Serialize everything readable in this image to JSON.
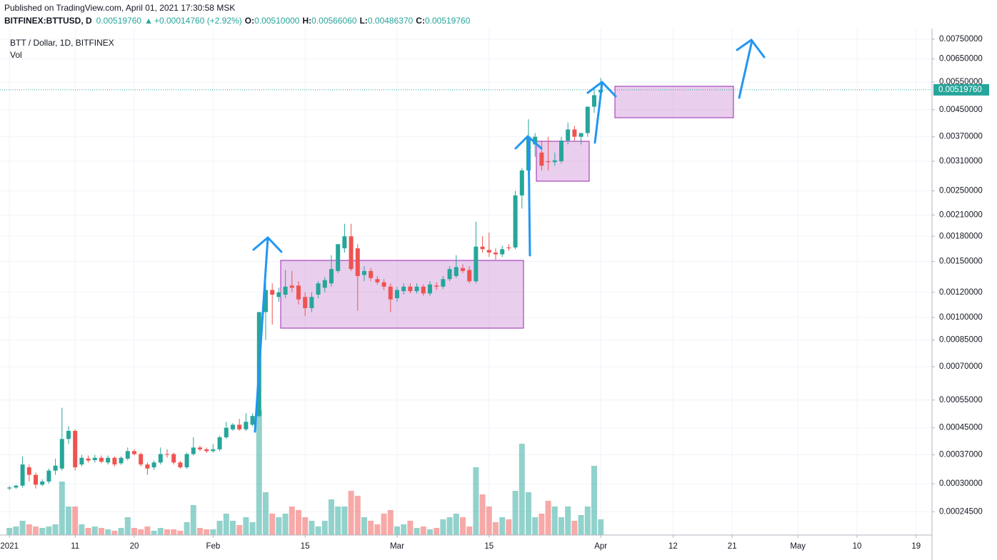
{
  "header": {
    "published": "Published on TradingView.com, April 01, 2021 17:30:58 MSK",
    "symbol": "BITFINEX:BTTUSD, D",
    "last": "0.00519760",
    "arrow": "▲",
    "change": "+0.00014760 (+2.92%)",
    "ohlc": [
      {
        "key": "O:",
        "value": "0.00510000"
      },
      {
        "key": "H:",
        "value": "0.00566060"
      },
      {
        "key": "L:",
        "value": "0.00486370"
      },
      {
        "key": "C:",
        "value": "0.00519760"
      }
    ]
  },
  "legend": {
    "title": "BTT / Dollar, 1D, BITFINEX",
    "volume": "Vol"
  },
  "chart_data": {
    "type": "candlestick",
    "log_scale": true,
    "grid": true,
    "up_color": "#26a69a",
    "down_color": "#ef5350",
    "x": [
      "2021-01-01",
      "2021-01-02",
      "2021-01-03",
      "2021-01-04",
      "2021-01-05",
      "2021-01-06",
      "2021-01-07",
      "2021-01-08",
      "2021-01-09",
      "2021-01-10",
      "2021-01-11",
      "2021-01-12",
      "2021-01-13",
      "2021-01-14",
      "2021-01-15",
      "2021-01-16",
      "2021-01-17",
      "2021-01-18",
      "2021-01-19",
      "2021-01-20",
      "2021-01-21",
      "2021-01-22",
      "2021-01-23",
      "2021-01-24",
      "2021-01-25",
      "2021-01-26",
      "2021-01-27",
      "2021-01-28",
      "2021-01-29",
      "2021-01-30",
      "2021-01-31",
      "2021-02-01",
      "2021-02-02",
      "2021-02-03",
      "2021-02-04",
      "2021-02-05",
      "2021-02-06",
      "2021-02-07",
      "2021-02-08",
      "2021-02-09",
      "2021-02-10",
      "2021-02-11",
      "2021-02-12",
      "2021-02-13",
      "2021-02-14",
      "2021-02-15",
      "2021-02-16",
      "2021-02-17",
      "2021-02-18",
      "2021-02-19",
      "2021-02-20",
      "2021-02-21",
      "2021-02-22",
      "2021-02-23",
      "2021-02-24",
      "2021-02-25",
      "2021-02-26",
      "2021-02-27",
      "2021-02-28",
      "2021-03-01",
      "2021-03-02",
      "2021-03-03",
      "2021-03-04",
      "2021-03-05",
      "2021-03-06",
      "2021-03-07",
      "2021-03-08",
      "2021-03-09",
      "2021-03-10",
      "2021-03-11",
      "2021-03-12",
      "2021-03-13",
      "2021-03-14",
      "2021-03-15",
      "2021-03-16",
      "2021-03-17",
      "2021-03-18",
      "2021-03-19",
      "2021-03-20",
      "2021-03-21",
      "2021-03-22",
      "2021-03-23",
      "2021-03-24",
      "2021-03-25",
      "2021-03-26",
      "2021-03-27",
      "2021-03-28",
      "2021-03-29",
      "2021-03-30",
      "2021-03-31",
      "2021-04-01"
    ],
    "open": [
      0.00029,
      0.000292,
      0.000296,
      0.000338,
      0.00032,
      0.000298,
      0.000305,
      0.00033,
      0.000335,
      0.000415,
      0.00044,
      0.000345,
      0.00036,
      0.000356,
      0.000362,
      0.00035,
      0.000362,
      0.000348,
      0.00036,
      0.00038,
      0.000372,
      0.000345,
      0.000338,
      0.00035,
      0.000372,
      0.000372,
      0.00035,
      0.000338,
      0.000372,
      0.00039,
      0.000385,
      0.00038,
      0.000385,
      0.00042,
      0.000445,
      0.00046,
      0.000445,
      0.00046,
      0.00049,
      0.00104,
      0.00122,
      0.00116,
      0.00118,
      0.00126,
      0.00126,
      0.00116,
      0.00107,
      0.00118,
      0.00124,
      0.00128,
      0.0014,
      0.00165,
      0.0018,
      0.00165,
      0.00136,
      0.0014,
      0.00132,
      0.00129,
      0.00125,
      0.00115,
      0.00121,
      0.00125,
      0.00121,
      0.00125,
      0.00119,
      0.00126,
      0.00125,
      0.00132,
      0.00135,
      0.00143,
      0.00141,
      0.0013,
      0.00167,
      0.00163,
      0.0016,
      0.00158,
      0.00166,
      0.00166,
      0.00242,
      0.0029,
      0.0035,
      0.0033,
      0.0031,
      0.00308,
      0.0031,
      0.0036,
      0.0039,
      0.0037,
      0.0038,
      0.0046,
      0.0051
    ],
    "high": [
      0.000295,
      0.000298,
      0.000365,
      0.000345,
      0.000325,
      0.00031,
      0.000335,
      0.00036,
      0.00052,
      0.000455,
      0.000445,
      0.00037,
      0.000368,
      0.00037,
      0.000368,
      0.000368,
      0.000366,
      0.000366,
      0.00039,
      0.000385,
      0.000376,
      0.00035,
      0.000355,
      0.00039,
      0.000385,
      0.000376,
      0.000354,
      0.000376,
      0.00042,
      0.000395,
      0.00039,
      0.0004,
      0.000425,
      0.00047,
      0.000465,
      0.00048,
      0.0005,
      0.0005,
      0.00104,
      0.00143,
      0.00128,
      0.00124,
      0.00141,
      0.0014,
      0.0013,
      0.0012,
      0.0012,
      0.0013,
      0.00134,
      0.00157,
      0.0017,
      0.00197,
      0.00197,
      0.0017,
      0.00145,
      0.00143,
      0.00135,
      0.00132,
      0.00128,
      0.00125,
      0.00128,
      0.00128,
      0.00128,
      0.00127,
      0.0013,
      0.00129,
      0.00135,
      0.00145,
      0.00157,
      0.00147,
      0.00145,
      0.002,
      0.0018,
      0.00185,
      0.00165,
      0.00168,
      0.0017,
      0.0025,
      0.00295,
      0.0042,
      0.0038,
      0.0036,
      0.0037,
      0.0033,
      0.0037,
      0.0041,
      0.004,
      0.0038,
      0.0046,
      0.0053,
      0.0056606
    ],
    "low": [
      0.000287,
      0.000289,
      0.000292,
      0.000305,
      0.00029,
      0.000295,
      0.0003,
      0.00032,
      0.00033,
      0.0004,
      0.00033,
      0.00034,
      0.00035,
      0.00035,
      0.000348,
      0.000345,
      0.00034,
      0.000344,
      0.000355,
      0.000368,
      0.00034,
      0.00032,
      0.000332,
      0.000345,
      0.000362,
      0.000345,
      0.000335,
      0.000334,
      0.000368,
      0.00038,
      0.000375,
      0.000376,
      0.00038,
      0.000415,
      0.00044,
      0.00044,
      0.00044,
      0.000455,
      0.000485,
      0.00085,
      0.00095,
      0.00112,
      0.00115,
      0.0012,
      0.0011,
      0.00101,
      0.00104,
      0.00115,
      0.0012,
      0.00125,
      0.00138,
      0.0016,
      0.0014,
      0.00105,
      0.0013,
      0.0013,
      0.00127,
      0.00122,
      0.00104,
      0.00112,
      0.00118,
      0.00119,
      0.00119,
      0.00117,
      0.00117,
      0.00122,
      0.00123,
      0.0013,
      0.00133,
      0.00138,
      0.00128,
      0.00128,
      0.0016,
      0.00155,
      0.00152,
      0.00155,
      0.00162,
      0.00164,
      0.0022,
      0.0028,
      0.0032,
      0.0029,
      0.0029,
      0.003,
      0.00305,
      0.0035,
      0.0036,
      0.0035,
      0.0037,
      0.0044,
      0.0048637
    ],
    "close": [
      0.000292,
      0.000296,
      0.000345,
      0.00032,
      0.000298,
      0.000305,
      0.00033,
      0.000342,
      0.000415,
      0.00044,
      0.000338,
      0.000362,
      0.000355,
      0.000362,
      0.000352,
      0.000362,
      0.000345,
      0.000362,
      0.00038,
      0.000372,
      0.000345,
      0.000335,
      0.00035,
      0.000372,
      0.00037,
      0.00035,
      0.000338,
      0.000372,
      0.00039,
      0.000385,
      0.00038,
      0.000385,
      0.00042,
      0.00045,
      0.00046,
      0.000445,
      0.00047,
      0.00049,
      0.00104,
      0.00122,
      0.00118,
      0.0012,
      0.00125,
      0.00124,
      0.00114,
      0.00107,
      0.00116,
      0.00128,
      0.00131,
      0.00142,
      0.0017,
      0.0018,
      0.00142,
      0.00135,
      0.0014,
      0.00133,
      0.00129,
      0.00125,
      0.00114,
      0.00122,
      0.00125,
      0.00121,
      0.00125,
      0.00119,
      0.00127,
      0.00125,
      0.00132,
      0.00142,
      0.00144,
      0.0014,
      0.0013,
      0.00167,
      0.00164,
      0.0016,
      0.00158,
      0.00164,
      0.00165,
      0.00242,
      0.0029,
      0.0037,
      0.0037,
      0.003,
      0.00308,
      0.00312,
      0.0036,
      0.0039,
      0.0037,
      0.0038,
      0.0046,
      0.005,
      0.0051976
    ],
    "volume": [
      10,
      12,
      20,
      15,
      12,
      10,
      12,
      15,
      75,
      40,
      40,
      15,
      10,
      12,
      10,
      8,
      6,
      10,
      25,
      10,
      8,
      12,
      6,
      10,
      8,
      8,
      6,
      18,
      42,
      10,
      8,
      8,
      20,
      30,
      20,
      14,
      25,
      18,
      175,
      60,
      30,
      25,
      30,
      40,
      35,
      25,
      20,
      12,
      20,
      50,
      40,
      40,
      62,
      55,
      25,
      20,
      15,
      30,
      35,
      12,
      15,
      20,
      10,
      12,
      8,
      10,
      22,
      25,
      30,
      25,
      12,
      95,
      57,
      40,
      18,
      25,
      22,
      62,
      128,
      60,
      25,
      30,
      48,
      40,
      25,
      40,
      20,
      28,
      40,
      97,
      22
    ],
    "xlim": [
      "2020-12-31",
      "2021-05-20"
    ],
    "xticks": [
      {
        "value": "2021-01-01",
        "label": "2021"
      },
      {
        "value": "2021-01-11",
        "label": "11"
      },
      {
        "value": "2021-01-20",
        "label": "20"
      },
      {
        "value": "2021-02-01",
        "label": "Feb"
      },
      {
        "value": "2021-02-15",
        "label": "15"
      },
      {
        "value": "2021-03-01",
        "label": "Mar"
      },
      {
        "value": "2021-03-15",
        "label": "15"
      },
      {
        "value": "2021-04-01",
        "label": "Apr"
      },
      {
        "value": "2021-04-12",
        "label": "12"
      },
      {
        "value": "2021-04-21",
        "label": "21"
      },
      {
        "value": "2021-05-01",
        "label": "May"
      },
      {
        "value": "2021-05-10",
        "label": "10"
      },
      {
        "value": "2021-05-19",
        "label": "19"
      }
    ],
    "ylim": [
      0.000207,
      0.0081
    ],
    "yticks": [
      {
        "value": 0.0075,
        "label": "0.00750000"
      },
      {
        "value": 0.0065,
        "label": "0.00650000"
      },
      {
        "value": 0.0055,
        "label": "0.00550000"
      },
      {
        "value": 0.0045,
        "label": "0.00450000"
      },
      {
        "value": 0.0037,
        "label": "0.00370000"
      },
      {
        "value": 0.0031,
        "label": "0.00310000"
      },
      {
        "value": 0.0025,
        "label": "0.00250000"
      },
      {
        "value": 0.0021,
        "label": "0.00210000"
      },
      {
        "value": 0.0018,
        "label": "0.00180000"
      },
      {
        "value": 0.0015,
        "label": "0.00150000"
      },
      {
        "value": 0.0012,
        "label": "0.00120000"
      },
      {
        "value": 0.001,
        "label": "0.00100000"
      },
      {
        "value": 0.00085,
        "label": "0.00085000"
      },
      {
        "value": 0.0007,
        "label": "0.00070000"
      },
      {
        "value": 0.00055,
        "label": "0.00055000"
      },
      {
        "value": 0.00045,
        "label": "0.00045000"
      },
      {
        "value": 0.00037,
        "label": "0.00037000"
      },
      {
        "value": 0.0003,
        "label": "0.00030000"
      },
      {
        "value": 0.000245,
        "label": "0.00024500"
      }
    ]
  }
}
